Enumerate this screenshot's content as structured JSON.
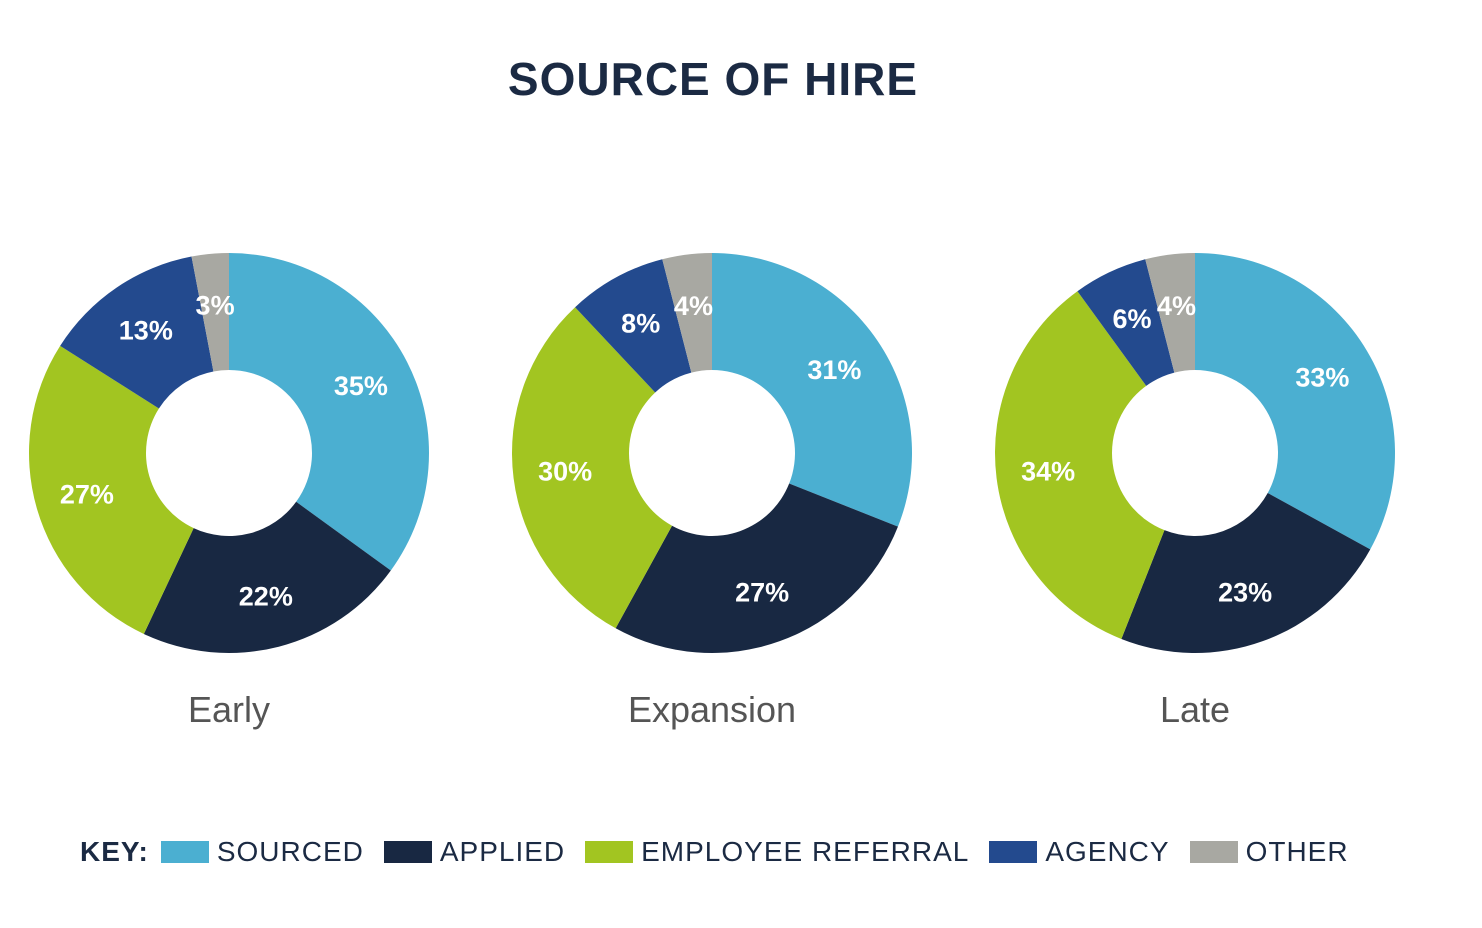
{
  "chart_data": {
    "type": "pie",
    "variant": "donut",
    "title": "SOURCE OF HIRE",
    "legend_label": "KEY:",
    "legend_position": "bottom",
    "categories": [
      "SOURCED",
      "APPLIED",
      "EMPLOYEE REFERRAL",
      "AGENCY",
      "OTHER"
    ],
    "colors": [
      "#4bafd1",
      "#182842",
      "#a2c521",
      "#234a8e",
      "#a8a8a2"
    ],
    "charts": [
      {
        "name": "Early",
        "values": [
          35,
          22,
          27,
          13,
          3
        ]
      },
      {
        "name": "Expansion",
        "values": [
          31,
          27,
          30,
          8,
          4
        ]
      },
      {
        "name": "Late",
        "values": [
          33,
          23,
          34,
          6,
          4
        ]
      }
    ]
  }
}
